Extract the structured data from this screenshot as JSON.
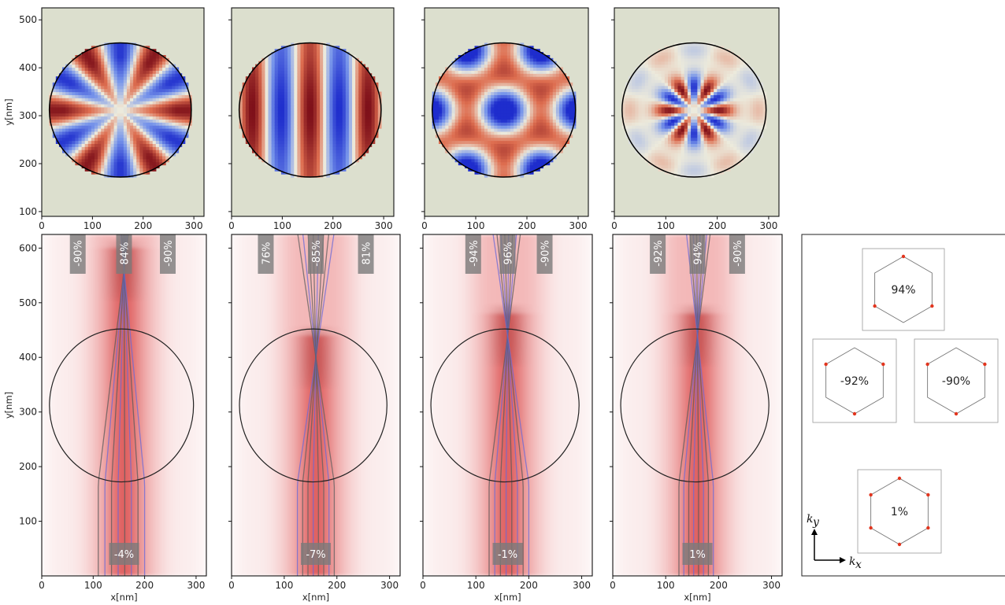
{
  "chart_data": [
    {
      "type": "heatmap",
      "panel": "top-1",
      "xlabel": "",
      "ylabel": "y[nm]",
      "xlim": [
        0,
        320
      ],
      "ylim": [
        90,
        525
      ],
      "xticks": [
        0,
        100,
        200,
        300
      ],
      "yticks": [
        100,
        200,
        300,
        400,
        500
      ],
      "pattern": {
        "kind": "radial",
        "n": 6,
        "k": 0,
        "scale": 1
      }
    },
    {
      "type": "heatmap",
      "panel": "top-2",
      "xlabel": "",
      "ylabel": "",
      "xlim": [
        0,
        320
      ],
      "ylim": [
        90,
        525
      ],
      "xticks": [
        0,
        100,
        200,
        300
      ],
      "yticks": [
        100,
        200,
        300,
        400,
        500
      ],
      "pattern": {
        "kind": "stripes",
        "k": 0.055,
        "scale": 1
      }
    },
    {
      "type": "heatmap",
      "panel": "top-3",
      "xlabel": "",
      "ylabel": "",
      "xlim": [
        0,
        320
      ],
      "ylim": [
        90,
        525
      ],
      "xticks": [
        0,
        100,
        200,
        300
      ],
      "yticks": [
        100,
        200,
        300,
        400,
        500
      ],
      "pattern": {
        "kind": "lattice",
        "k": 0.05,
        "scale": 1
      }
    },
    {
      "type": "heatmap",
      "panel": "top-4",
      "xlabel": "",
      "ylabel": "",
      "xlim": [
        0,
        320
      ],
      "ylim": [
        90,
        525
      ],
      "xticks": [
        0,
        100,
        200,
        300
      ],
      "yticks": [
        100,
        200,
        300,
        400,
        500
      ],
      "pattern": {
        "kind": "ring",
        "n": 6,
        "k": 0.06,
        "scale": 1
      }
    },
    {
      "type": "line",
      "panel": "bottom-1",
      "xlabel": "x[nm]",
      "ylabel": "y[nm]",
      "xlim": [
        0,
        320
      ],
      "ylim": [
        0,
        625
      ],
      "xticks": [
        0,
        100,
        200,
        300
      ],
      "yticks": [
        100,
        200,
        300,
        400,
        500,
        600
      ],
      "lines": {
        "focus_y": 560,
        "x_min": 110,
        "x_max": 200,
        "count": 8,
        "color_pattern": "alternate"
      },
      "labels": [
        {
          "text": "-90%",
          "x": 70,
          "angle": -90
        },
        {
          "text": "84%",
          "x": 160,
          "angle": -90
        },
        {
          "text": "-90%",
          "x": 245,
          "angle": -90
        },
        {
          "text": "-4%",
          "x": 160,
          "angle": 0
        }
      ]
    },
    {
      "type": "line",
      "panel": "bottom-2",
      "xlabel": "x[nm]",
      "ylabel": "",
      "xlim": [
        0,
        320
      ],
      "ylim": [
        0,
        625
      ],
      "xticks": [
        0,
        100,
        200,
        300
      ],
      "yticks": [
        100,
        200,
        300,
        400,
        500,
        600
      ],
      "lines": {
        "focus_y": 400,
        "x_min": 125,
        "x_max": 195,
        "count": 8,
        "color_pattern": "mixed"
      },
      "labels": [
        {
          "text": "76%",
          "x": 65,
          "angle": -90
        },
        {
          "text": "-85%",
          "x": 160,
          "angle": -90
        },
        {
          "text": "81%",
          "x": 255,
          "angle": -90
        },
        {
          "text": "-7%",
          "x": 160,
          "angle": 0
        }
      ]
    },
    {
      "type": "line",
      "panel": "bottom-3",
      "xlabel": "x[nm]",
      "ylabel": "",
      "xlim": [
        0,
        320
      ],
      "ylim": [
        0,
        625
      ],
      "xticks": [
        0,
        100,
        200,
        300
      ],
      "yticks": [
        100,
        200,
        300,
        400,
        500,
        600
      ],
      "lines": {
        "focus_y": 440,
        "x_min": 125,
        "x_max": 200,
        "count": 8,
        "color_pattern": "alternate"
      },
      "labels": [
        {
          "text": "-94%",
          "x": 95,
          "angle": -90
        },
        {
          "text": "96%",
          "x": 160,
          "angle": -90
        },
        {
          "text": "-90%",
          "x": 230,
          "angle": -90
        },
        {
          "text": "-1%",
          "x": 160,
          "angle": 0
        }
      ]
    },
    {
      "type": "line",
      "panel": "bottom-4",
      "xlabel": "x[nm]",
      "ylabel": "",
      "xlim": [
        0,
        320
      ],
      "ylim": [
        0,
        625
      ],
      "xticks": [
        0,
        100,
        200,
        300
      ],
      "yticks": [
        100,
        200,
        300,
        400,
        500,
        600
      ],
      "lines": {
        "focus_y": 440,
        "x_min": 125,
        "x_max": 190,
        "count": 8,
        "color_pattern": "alternate"
      },
      "labels": [
        {
          "text": "-92%",
          "x": 85,
          "angle": -90
        },
        {
          "text": "94%",
          "x": 160,
          "angle": -90
        },
        {
          "text": "-90%",
          "x": 235,
          "angle": -90
        },
        {
          "text": "1%",
          "x": 160,
          "angle": 0
        }
      ]
    }
  ],
  "legend_panel": {
    "hexagons": [
      {
        "text": "94%",
        "dots": [
          0,
          2,
          4
        ]
      },
      {
        "text": "-92%",
        "dots": [
          1,
          3,
          5
        ]
      },
      {
        "text": "-90%",
        "dots": [
          1,
          3,
          5
        ]
      },
      {
        "text": "1%",
        "dots": [
          0,
          1,
          2,
          3,
          4,
          5
        ]
      }
    ],
    "axis_x_label": "k",
    "axis_x_sub": "x",
    "axis_y_label": "k",
    "axis_y_sub": "y"
  }
}
